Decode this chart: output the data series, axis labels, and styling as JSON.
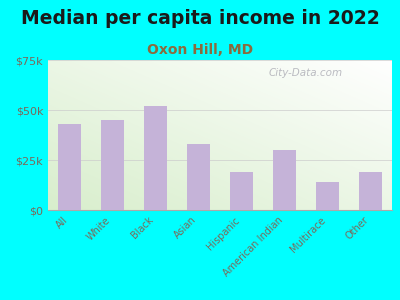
{
  "title": "Median per capita income in 2022",
  "subtitle": "Oxon Hill, MD",
  "categories": [
    "All",
    "White",
    "Black",
    "Asian",
    "Hispanic",
    "American Indian",
    "Multirace",
    "Other"
  ],
  "values": [
    43000,
    45000,
    52000,
    33000,
    19000,
    30000,
    14000,
    19000
  ],
  "bar_color": "#c5b3d8",
  "background_outer": "#00ffff",
  "yticks": [
    0,
    25000,
    50000,
    75000
  ],
  "ytick_labels": [
    "$0",
    "$25k",
    "$50k",
    "$75k"
  ],
  "title_fontsize": 13.5,
  "subtitle_fontsize": 10,
  "subtitle_color": "#8B6B3D",
  "tick_label_color": "#7a6a5a",
  "watermark": "City-Data.com",
  "ylim": [
    0,
    75000
  ]
}
